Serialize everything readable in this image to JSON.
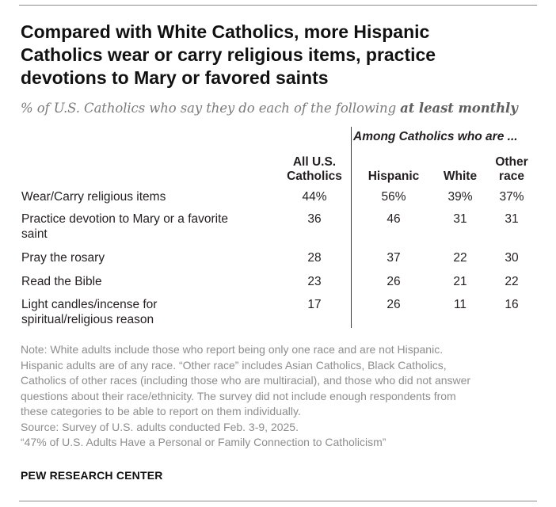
{
  "header": {
    "title_line1": "Compared with White Catholics, more Hispanic",
    "title_line2": "Catholics wear or carry religious items, practice",
    "title_line3": "devotions to Mary or favored saints",
    "subtitle_prefix": "% of U.S. Catholics who say they do each of the following ",
    "subtitle_emphasis": "at least monthly"
  },
  "chart_data": {
    "type": "table",
    "group_header": "Among Catholics who are ...",
    "columns": [
      {
        "line1": "All U.S.",
        "line2": "Catholics"
      },
      {
        "line1": "Hispanic",
        "line2": ""
      },
      {
        "line1": "White",
        "line2": ""
      },
      {
        "line1": "Other",
        "line2": "race"
      }
    ],
    "rows": [
      {
        "label_line1": "Wear/Carry religious items",
        "label_line2": "",
        "values": [
          "44%",
          "56%",
          "39%",
          "37%"
        ]
      },
      {
        "label_line1": "Practice devotion to Mary or a favorite",
        "label_line2": "saint",
        "values": [
          "36",
          "46",
          "31",
          "31"
        ]
      },
      {
        "label_line1": "Pray the rosary",
        "label_line2": "",
        "values": [
          "28",
          "37",
          "22",
          "30"
        ]
      },
      {
        "label_line1": "Read the Bible",
        "label_line2": "",
        "values": [
          "23",
          "26",
          "21",
          "22"
        ]
      },
      {
        "label_line1": "Light candles/incense for",
        "label_line2": "spiritual/religious reason",
        "values": [
          "17",
          "26",
          "11",
          "16"
        ]
      }
    ]
  },
  "footer": {
    "note_lines": [
      "Note: White adults include those who report being only one race and are not Hispanic.",
      "Hispanic adults are of any race. “Other race” includes Asian Catholics, Black Catholics,",
      "Catholics of other races (including those who are multiracial), and those who did not answer",
      "questions about their race/ethnicity. The survey did not include enough respondents from",
      "these categories to be able to report on them individually."
    ],
    "source": "Source: Survey of U.S. adults conducted Feb. 3-9, 2025.",
    "report": "“47% of U.S. Adults Have a Personal or Family Connection to Catholicism”",
    "org": "PEW RESEARCH CENTER"
  }
}
